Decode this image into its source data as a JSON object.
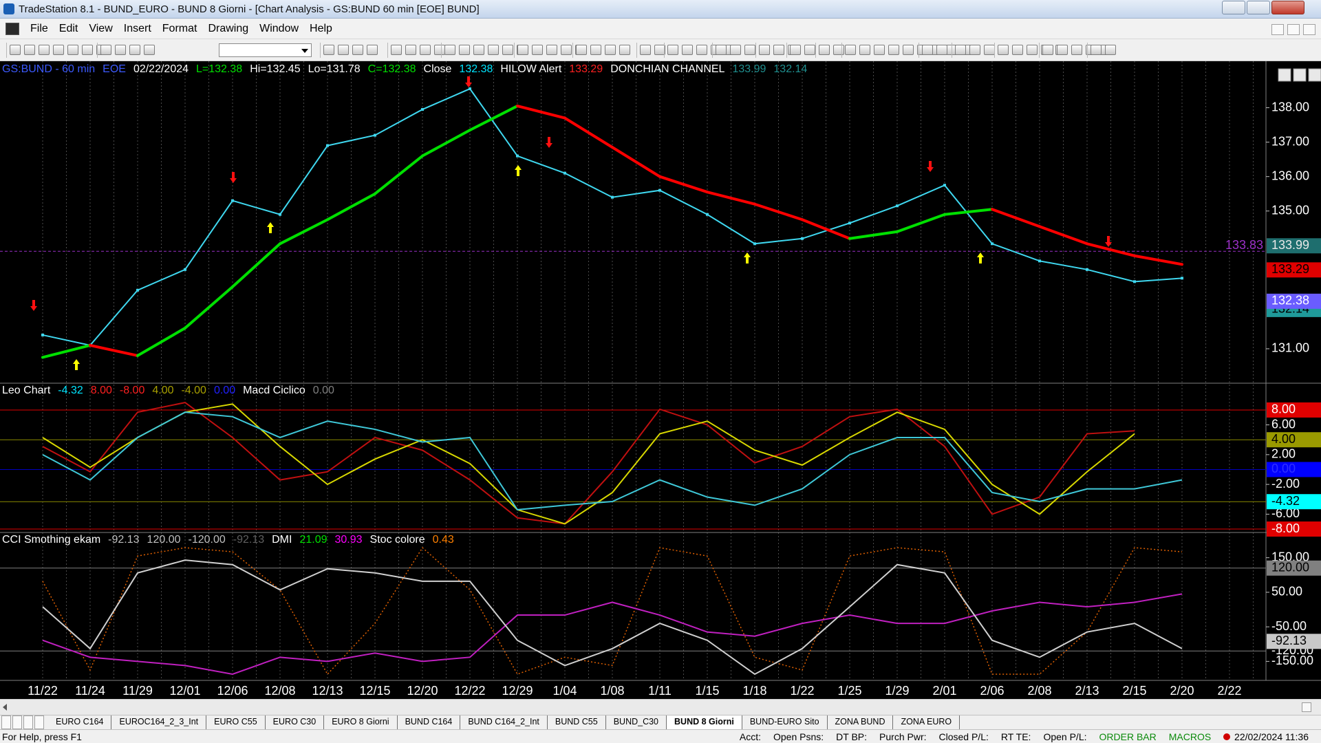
{
  "window": {
    "title": "TradeStation 8.1 - BUND_EURO - BUND 8 Giorni - [Chart Analysis - GS:BUND  60 min  [EOE] BUND]",
    "menu": [
      "File",
      "Edit",
      "View",
      "Insert",
      "Format",
      "Drawing",
      "Window",
      "Help"
    ]
  },
  "chart_data": [
    {
      "type": "line",
      "categories": [
        "11/22",
        "11/24",
        "11/29",
        "12/01",
        "12/06",
        "12/08",
        "12/13",
        "12/15",
        "12/20",
        "12/22",
        "12/29",
        "1/04",
        "1/08",
        "1/11",
        "1/15",
        "1/18",
        "1/22",
        "1/25",
        "1/29",
        "2/01",
        "2/06",
        "2/08",
        "2/13",
        "2/15",
        "2/20",
        "2/22"
      ],
      "status": [
        {
          "text": "GS:BUND - 60 min",
          "color": "#3c5aff"
        },
        {
          "text": "EOE",
          "color": "#3c5aff"
        },
        {
          "text": "02/22/2024",
          "color": "#ffffff"
        },
        {
          "text": "L=132.38",
          "color": "#00e000"
        },
        {
          "text": "Hi=132.45",
          "color": "#ffffff"
        },
        {
          "text": "Lo=131.78",
          "color": "#ffffff"
        },
        {
          "text": "C=132.38",
          "color": "#00e000"
        },
        {
          "text": "Close",
          "color": "#ffffff"
        },
        {
          "text": "132.38",
          "color": "#00e5ff"
        },
        {
          "text": "HILOW Alert",
          "color": "#ffffff"
        },
        {
          "text": "133.29",
          "color": "#ff2020"
        },
        {
          "text": "DONCHIAN CHANNEL",
          "color": "#ffffff"
        },
        {
          "text": "133.99",
          "color": "#1f8f8f"
        },
        {
          "text": "132.14",
          "color": "#1f8f8f"
        }
      ],
      "series": [
        {
          "color": "#3fd8f0",
          "values": [
            131.4,
            131.1,
            132.7,
            133.3,
            135.3,
            134.9,
            136.9,
            137.2,
            137.95,
            138.55,
            136.6,
            136.1,
            135.4,
            135.6,
            134.9,
            134.05,
            134.2,
            134.65,
            135.15,
            135.75,
            134.05,
            133.55,
            133.3,
            132.95,
            133.05,
            null
          ]
        },
        {
          "up_color": "#00e000",
          "down_color": "#ff0000",
          "values": [
            130.75,
            131.1,
            130.8,
            131.6,
            132.8,
            134.05,
            134.75,
            135.5,
            136.6,
            137.35,
            138.05,
            137.7,
            136.85,
            136.0,
            135.55,
            135.2,
            134.75,
            134.2,
            134.4,
            134.9,
            135.05,
            134.55,
            134.05,
            133.7,
            133.45,
            null
          ]
        }
      ],
      "ylim": [
        130.0,
        139.35
      ],
      "yticks": [
        {
          "value": 131,
          "label": "131.00"
        },
        {
          "value": 135,
          "label": "135.00"
        },
        {
          "value": 136,
          "label": "136.00"
        },
        {
          "value": 137,
          "label": "137.00"
        },
        {
          "value": 138,
          "label": "138.00"
        }
      ],
      "markers": [
        {
          "value": 133.83,
          "label": "133.83",
          "color": "#9b30c8",
          "line": "#9b30c8",
          "inside": true
        },
        {
          "value": 133.99,
          "label": "133.99",
          "bg": "#1e6e6e",
          "color": "#e8e8e8"
        },
        {
          "value": 133.29,
          "label": "133.29",
          "bg": "#e00000",
          "color": "#000000"
        },
        {
          "value": 132.14,
          "label": "132.14",
          "bg": "#1f9a9a",
          "color": "#000000"
        },
        {
          "value": 132.38,
          "label": "132.38",
          "bg": "#6a5cff",
          "color": "#ffffff"
        }
      ]
    },
    {
      "type": "line",
      "status": [
        {
          "text": "Leo Chart",
          "color": "#ffffff"
        },
        {
          "text": "-4.32",
          "color": "#00e5ff"
        },
        {
          "text": "8.00",
          "color": "#ff2020"
        },
        {
          "text": "-8.00",
          "color": "#ff2020"
        },
        {
          "text": "4.00",
          "color": "#a8a000"
        },
        {
          "text": "-4.00",
          "color": "#a8a000"
        },
        {
          "text": "0.00",
          "color": "#2020ff"
        },
        {
          "text": "Macd Ciclico",
          "color": "#ffffff"
        },
        {
          "text": "0.00",
          "color": "#808080"
        }
      ],
      "series": [
        {
          "color": "#c01010",
          "values": [
            3.1,
            -0.3,
            7.7,
            9.0,
            4.3,
            -1.4,
            -0.3,
            4.3,
            2.6,
            -1.4,
            -6.5,
            -7.3,
            -0.3,
            8.1,
            6.0,
            0.9,
            3.1,
            7.1,
            8.1,
            3.1,
            -6.0,
            -3.7,
            4.8,
            5.2,
            null,
            null
          ]
        },
        {
          "color": "#d8d800",
          "values": [
            4.3,
            0.3,
            4.3,
            7.7,
            8.8,
            3.1,
            -2.0,
            1.4,
            4.0,
            0.8,
            -5.4,
            -7.3,
            -3.1,
            4.8,
            6.5,
            2.6,
            0.6,
            4.3,
            7.7,
            5.4,
            -2.0,
            -6.0,
            -0.3,
            4.8,
            null,
            null
          ]
        },
        {
          "color": "#3fc8d8",
          "values": [
            2.0,
            -1.4,
            4.3,
            7.7,
            7.1,
            4.3,
            6.5,
            5.4,
            3.7,
            4.3,
            -5.4,
            -4.8,
            -4.3,
            -1.4,
            -3.7,
            -4.8,
            -2.6,
            2.0,
            4.3,
            4.3,
            -3.1,
            -4.3,
            -2.6,
            -2.6,
            -1.4,
            null
          ]
        }
      ],
      "ylim": [
        -8.46,
        11.6
      ],
      "yticks": [
        {
          "value": 6,
          "label": "6.00"
        },
        {
          "value": 2,
          "label": "2.00"
        },
        {
          "value": -2,
          "label": "-2.00"
        },
        {
          "value": -6,
          "label": "-6.00"
        }
      ],
      "markers": [
        {
          "value": 8,
          "label": "8.00",
          "bg": "#e00000",
          "color": "#ffffff",
          "line": "#e00000"
        },
        {
          "value": 4,
          "label": "4.00",
          "bg": "#9a9a00",
          "color": "#000000",
          "line": "#8a8a00"
        },
        {
          "value": 0,
          "label": "0.00",
          "bg": "#0000ff",
          "color": "#3030ff",
          "line": "#0000c0"
        },
        {
          "value": -4.32,
          "label": "-4.32",
          "bg": "#00ffff",
          "color": "#000000",
          "line": "#8a8a00"
        },
        {
          "value": -8,
          "label": "-8.00",
          "bg": "#e00000",
          "color": "#ffffff",
          "line": "#e00000"
        }
      ]
    },
    {
      "type": "line",
      "status": [
        {
          "text": "CCI Smothing ekam",
          "color": "#ffffff"
        },
        {
          "text": "-92.13",
          "color": "#c0c0c0"
        },
        {
          "text": "120.00",
          "color": "#c0c0c0"
        },
        {
          "text": "-120.00",
          "color": "#c0c0c0"
        },
        {
          "text": "-92.13",
          "color": "#606060"
        },
        {
          "text": "DMI",
          "color": "#ffffff"
        },
        {
          "text": "21.09",
          "color": "#00e000"
        },
        {
          "text": "30.93",
          "color": "#ff00ff"
        },
        {
          "text": "Stoc colore",
          "color": "#ffffff"
        },
        {
          "text": "0.43",
          "color": "#ff8000"
        }
      ],
      "series": [
        {
          "color": "#e06000",
          "style": "dotted",
          "values": [
            82,
            -175,
            155,
            179,
            167,
            57,
            -187,
            -40,
            179,
            57,
            -187,
            -138,
            -162,
            179,
            155,
            -138,
            -175,
            155,
            179,
            167,
            -187,
            -187,
            -65,
            179,
            167,
            null
          ]
        },
        {
          "color": "#c020c0",
          "values": [
            -89,
            -138,
            -150,
            -162,
            -187,
            -138,
            -150,
            -126,
            -150,
            -138,
            -16,
            -16,
            21,
            -16,
            -65,
            -77,
            -40,
            -16,
            -40,
            -40,
            -4,
            21,
            8,
            21,
            45,
            null
          ]
        },
        {
          "color": "#d0d0d0",
          "values": [
            8,
            -113,
            106,
            143,
            130,
            57,
            118,
            106,
            82,
            82,
            -89,
            -162,
            -113,
            -40,
            -89,
            -187,
            -113,
            8,
            130,
            106,
            -89,
            -138,
            -65,
            -40,
            -113,
            null
          ]
        }
      ],
      "ylim": [
        -205,
        223
      ],
      "yticks": [
        {
          "value": 150,
          "label": "150.00"
        },
        {
          "value": 50,
          "label": "50.00"
        },
        {
          "value": -50,
          "label": "-50.00"
        },
        {
          "value": -150,
          "label": "-150.00"
        }
      ],
      "markers": [
        {
          "value": 120,
          "label": "120.00",
          "bg": "#808080",
          "color": "#000000",
          "line": "#808080"
        },
        {
          "value": -120,
          "label": "-120.00",
          "color": "#ffffff",
          "line": "#808080"
        },
        {
          "value": -92.13,
          "label": "-92.13",
          "bg": "#c8c8c8",
          "color": "#000000"
        }
      ]
    }
  ],
  "tabs": [
    {
      "text": "EURO C164"
    },
    {
      "text": "EUROC164_2_3_Int"
    },
    {
      "text": "EURO C55"
    },
    {
      "text": "EURO C30"
    },
    {
      "text": "EURO 8 Giorni"
    },
    {
      "text": "BUND C164"
    },
    {
      "text": "BUND C164_2_Int"
    },
    {
      "text": "BUND C55"
    },
    {
      "text": "BUND_C30"
    },
    {
      "text": "BUND 8 Giorni",
      "active": true
    },
    {
      "text": "BUND-EURO Sito"
    },
    {
      "text": "ZONA BUND"
    },
    {
      "text": "ZONA EURO"
    }
  ],
  "status_bar": {
    "help": "For Help, press F1",
    "fields": [
      {
        "text": "Acct:",
        "color": "#000000"
      },
      {
        "text": "Open Psns:",
        "color": "#000000"
      },
      {
        "text": "DT BP:",
        "color": "#000000"
      },
      {
        "text": "Purch Pwr:",
        "color": "#000000"
      },
      {
        "text": "Closed P/L:",
        "color": "#000000"
      },
      {
        "text": "RT TE:",
        "color": "#000000"
      },
      {
        "text": "Open P/L:",
        "color": "#000000"
      },
      {
        "text": "ORDER BAR",
        "color": "#0a8a0a"
      },
      {
        "text": "MACROS",
        "color": "#0a8a0a"
      }
    ],
    "clock": "22/02/2024 11:36"
  }
}
